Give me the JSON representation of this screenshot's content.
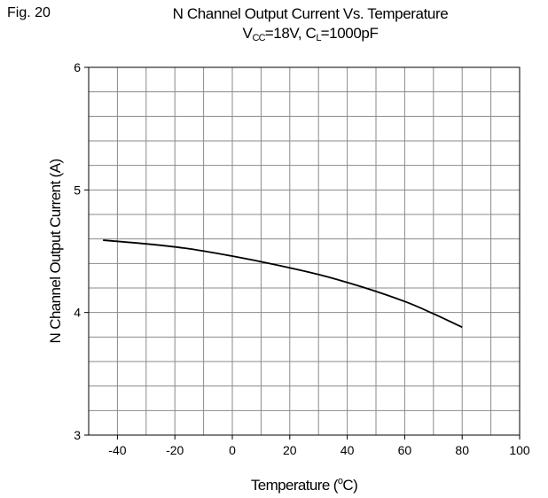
{
  "figure_label": "Fig. 20",
  "title": "N Channel Output Current Vs. Temperature",
  "subtitle": {
    "v_symbol": "V",
    "v_sub": "CC",
    "v_value": "=18V, C",
    "c_sub": "L",
    "c_value": "=1000pF"
  },
  "chart_data": {
    "type": "line",
    "title": "N Channel Output Current Vs. Temperature",
    "xlabel": "Temperature (oC)",
    "xlabel_parts": {
      "pre": "Temperature (",
      "sup": "o",
      "post": "C)"
    },
    "ylabel": "N Channel Output Current (A)",
    "xlim": [
      -50,
      100
    ],
    "ylim": [
      3,
      6
    ],
    "x_ticks": [
      -40,
      -20,
      0,
      20,
      40,
      60,
      80,
      100
    ],
    "y_ticks": [
      3,
      4,
      5,
      6
    ],
    "grid": true,
    "legend": "none",
    "series": [
      {
        "x": [
          -45,
          -30,
          -15,
          0,
          15,
          30,
          45,
          60,
          70,
          80
        ],
        "y": [
          4.59,
          4.56,
          4.52,
          4.46,
          4.39,
          4.31,
          4.21,
          4.09,
          3.99,
          3.88
        ],
        "color": "#000000"
      }
    ]
  }
}
